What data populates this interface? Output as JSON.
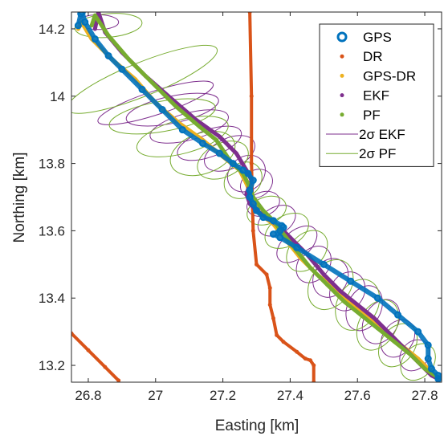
{
  "chart_data": {
    "type": "scatter",
    "xlabel": "Easting [km]",
    "ylabel": "Northing [km]",
    "xlim": [
      26.75,
      27.85
    ],
    "ylim": [
      13.15,
      14.25
    ],
    "xticks": [
      {
        "v": 26.8,
        "label": "26.8"
      },
      {
        "v": 27.0,
        "label": "27"
      },
      {
        "v": 27.2,
        "label": "27.2"
      },
      {
        "v": 27.4,
        "label": "27.4"
      },
      {
        "v": 27.6,
        "label": "27.6"
      },
      {
        "v": 27.8,
        "label": "27.8"
      }
    ],
    "yticks": [
      {
        "v": 13.2,
        "label": "13.2"
      },
      {
        "v": 13.4,
        "label": "13.4"
      },
      {
        "v": 13.6,
        "label": "13.6"
      },
      {
        "v": 13.8,
        "label": "13.8"
      },
      {
        "v": 14.0,
        "label": "14"
      },
      {
        "v": 14.2,
        "label": "14.2"
      }
    ],
    "grid": false,
    "legend_position": "top-right",
    "series": [
      {
        "name": "GPS",
        "marker": "circle-open",
        "color": "#0072BD",
        "x": [
          26.77,
          26.778,
          26.782,
          26.79,
          26.82,
          26.86,
          26.9,
          26.96,
          27.02,
          27.08,
          27.14,
          27.19,
          27.23,
          27.26,
          27.275,
          27.29,
          27.28,
          27.28,
          27.29,
          27.3,
          27.32,
          27.35,
          27.375,
          27.38,
          27.37,
          27.35,
          27.37,
          27.42,
          27.5,
          27.58,
          27.66,
          27.72,
          27.78,
          27.81,
          27.81,
          27.82,
          27.84,
          27.84
        ],
        "y": [
          14.21,
          14.245,
          14.25,
          14.22,
          14.17,
          14.12,
          14.08,
          14.02,
          13.96,
          13.9,
          13.86,
          13.83,
          13.8,
          13.78,
          13.77,
          13.75,
          13.72,
          13.7,
          13.68,
          13.66,
          13.64,
          13.63,
          13.615,
          13.61,
          13.6,
          13.59,
          13.58,
          13.55,
          13.5,
          13.45,
          13.4,
          13.35,
          13.3,
          13.26,
          13.22,
          13.19,
          13.17,
          13.16
        ]
      },
      {
        "name": "DR",
        "marker": "dot",
        "color": "#D95319",
        "x": [
          27.28,
          27.285,
          27.285,
          27.29,
          27.3,
          27.33,
          27.34,
          27.34,
          27.35,
          27.36,
          27.38,
          27.42,
          27.445,
          27.46,
          27.47,
          27.47
        ],
        "y": [
          14.25,
          14.0,
          13.8,
          13.6,
          13.5,
          13.47,
          13.43,
          13.38,
          13.34,
          13.29,
          13.27,
          13.24,
          13.22,
          13.215,
          13.2,
          13.15
        ]
      },
      {
        "name": "DR",
        "marker": "dot",
        "color": "#D95319",
        "x": [
          26.75,
          26.8,
          26.85,
          26.89
        ],
        "y": [
          13.295,
          13.245,
          13.195,
          13.155
        ]
      },
      {
        "name": "GPS-DR",
        "marker": "dot",
        "color": "#EDB120",
        "x": [
          26.77,
          26.78,
          26.81,
          26.87,
          26.94,
          27.0,
          27.07,
          27.14,
          27.2,
          27.25,
          27.27,
          27.29,
          27.31,
          27.35,
          27.39,
          27.43,
          27.48,
          27.53,
          27.57,
          27.62,
          27.68,
          27.73,
          27.78,
          27.81,
          27.83,
          27.84
        ],
        "y": [
          14.2,
          14.22,
          14.17,
          14.11,
          14.05,
          13.98,
          13.92,
          13.87,
          13.82,
          13.78,
          13.74,
          13.69,
          13.65,
          13.62,
          13.57,
          13.52,
          13.47,
          13.43,
          13.39,
          13.35,
          13.3,
          13.26,
          13.22,
          13.19,
          13.17,
          13.16
        ]
      },
      {
        "name": "EKF",
        "marker": "dot",
        "color": "#7E2F8E",
        "x": [
          26.82,
          26.83,
          26.85,
          26.9,
          26.97,
          27.05,
          27.12,
          27.19,
          27.24,
          27.27,
          27.285,
          27.27,
          27.28,
          27.3,
          27.33,
          27.37,
          27.4,
          27.45,
          27.5,
          27.55,
          27.6,
          27.65,
          27.7,
          27.74,
          27.78,
          27.8,
          27.82,
          27.84
        ],
        "y": [
          14.2,
          14.25,
          14.19,
          14.13,
          14.06,
          13.99,
          13.93,
          13.88,
          13.83,
          13.78,
          13.75,
          13.71,
          13.68,
          13.66,
          13.64,
          13.61,
          13.58,
          13.53,
          13.47,
          13.42,
          13.38,
          13.34,
          13.29,
          13.25,
          13.21,
          13.19,
          13.17,
          13.16
        ]
      },
      {
        "name": "PF",
        "marker": "dot",
        "color": "#77AC30",
        "x": [
          26.81,
          26.82,
          26.86,
          26.92,
          26.99,
          27.06,
          27.13,
          27.18,
          27.22,
          27.26,
          27.28,
          27.29,
          27.32,
          27.35,
          27.38,
          27.42,
          27.46,
          27.51,
          27.56,
          27.61,
          27.66,
          27.71,
          27.76,
          27.8,
          27.83,
          27.85
        ],
        "y": [
          14.21,
          14.24,
          14.18,
          14.11,
          14.04,
          13.97,
          13.91,
          13.87,
          13.81,
          13.77,
          13.73,
          13.7,
          13.66,
          13.63,
          13.59,
          13.54,
          13.49,
          13.44,
          13.39,
          13.35,
          13.31,
          13.27,
          13.23,
          13.19,
          13.17,
          13.16
        ]
      },
      {
        "name": "2σ EKF",
        "marker": "ellipse",
        "color": "#7E2F8E",
        "ellipses": [
          {
            "cx": 26.83,
            "cy": 14.22,
            "rx": 0.06,
            "ry": 0.022,
            "rot": 0
          },
          {
            "cx": 27.0,
            "cy": 13.98,
            "rx": 0.18,
            "ry": 0.035,
            "rot": -18
          },
          {
            "cx": 27.05,
            "cy": 13.96,
            "rx": 0.14,
            "ry": 0.04,
            "rot": -12
          },
          {
            "cx": 27.1,
            "cy": 13.91,
            "rx": 0.12,
            "ry": 0.04,
            "rot": -15
          },
          {
            "cx": 27.16,
            "cy": 13.86,
            "rx": 0.1,
            "ry": 0.04,
            "rot": -20
          },
          {
            "cx": 27.22,
            "cy": 13.83,
            "rx": 0.08,
            "ry": 0.045,
            "rot": -25
          },
          {
            "cx": 27.27,
            "cy": 13.77,
            "rx": 0.06,
            "ry": 0.05,
            "rot": -40
          },
          {
            "cx": 27.3,
            "cy": 13.74,
            "rx": 0.05,
            "ry": 0.04,
            "rot": -30
          },
          {
            "cx": 27.32,
            "cy": 13.68,
            "rx": 0.05,
            "ry": 0.035,
            "rot": -20
          },
          {
            "cx": 27.36,
            "cy": 13.63,
            "rx": 0.06,
            "ry": 0.04,
            "rot": -30
          },
          {
            "cx": 27.42,
            "cy": 13.56,
            "rx": 0.07,
            "ry": 0.04,
            "rot": -40
          },
          {
            "cx": 27.47,
            "cy": 13.5,
            "rx": 0.06,
            "ry": 0.045,
            "rot": -50
          },
          {
            "cx": 27.52,
            "cy": 13.46,
            "rx": 0.06,
            "ry": 0.05,
            "rot": -60
          },
          {
            "cx": 27.57,
            "cy": 13.42,
            "rx": 0.06,
            "ry": 0.05,
            "rot": -60
          },
          {
            "cx": 27.62,
            "cy": 13.37,
            "rx": 0.07,
            "ry": 0.05,
            "rot": -65
          },
          {
            "cx": 27.67,
            "cy": 13.33,
            "rx": 0.07,
            "ry": 0.05,
            "rot": -60
          },
          {
            "cx": 27.72,
            "cy": 13.28,
            "rx": 0.06,
            "ry": 0.045,
            "rot": -55
          },
          {
            "cx": 27.77,
            "cy": 13.23,
            "rx": 0.05,
            "ry": 0.04,
            "rot": -50
          }
        ]
      },
      {
        "name": "2σ PF",
        "marker": "ellipse",
        "color": "#77AC30",
        "ellipses": [
          {
            "cx": 26.86,
            "cy": 14.21,
            "rx": 0.1,
            "ry": 0.035,
            "rot": -5
          },
          {
            "cx": 26.96,
            "cy": 14.05,
            "rx": 0.24,
            "ry": 0.05,
            "rot": -22
          },
          {
            "cx": 27.02,
            "cy": 13.94,
            "rx": 0.16,
            "ry": 0.045,
            "rot": -10
          },
          {
            "cx": 27.08,
            "cy": 13.88,
            "rx": 0.14,
            "ry": 0.05,
            "rot": -15
          },
          {
            "cx": 27.14,
            "cy": 13.83,
            "rx": 0.1,
            "ry": 0.06,
            "rot": -20
          },
          {
            "cx": 27.2,
            "cy": 13.81,
            "rx": 0.08,
            "ry": 0.05,
            "rot": -25
          },
          {
            "cx": 27.26,
            "cy": 13.75,
            "rx": 0.06,
            "ry": 0.05,
            "rot": -40
          },
          {
            "cx": 27.33,
            "cy": 13.66,
            "rx": 0.06,
            "ry": 0.04,
            "rot": -20
          },
          {
            "cx": 27.39,
            "cy": 13.6,
            "rx": 0.07,
            "ry": 0.045,
            "rot": -30
          },
          {
            "cx": 27.45,
            "cy": 13.54,
            "rx": 0.07,
            "ry": 0.05,
            "rot": -45
          },
          {
            "cx": 27.52,
            "cy": 13.44,
            "rx": 0.08,
            "ry": 0.06,
            "rot": -55
          },
          {
            "cx": 27.6,
            "cy": 13.38,
            "rx": 0.08,
            "ry": 0.06,
            "rot": -60
          },
          {
            "cx": 27.66,
            "cy": 13.32,
            "rx": 0.08,
            "ry": 0.055,
            "rot": -60
          },
          {
            "cx": 27.72,
            "cy": 13.26,
            "rx": 0.07,
            "ry": 0.05,
            "rot": -55
          },
          {
            "cx": 27.78,
            "cy": 13.21,
            "rx": 0.06,
            "ry": 0.045,
            "rot": -50
          }
        ]
      }
    ]
  },
  "legend": {
    "items": [
      {
        "label": "GPS",
        "kind": "circle-open",
        "color": "#0072BD"
      },
      {
        "label": "DR",
        "kind": "dot",
        "color": "#D95319"
      },
      {
        "label": "GPS-DR",
        "kind": "dot",
        "color": "#EDB120"
      },
      {
        "label": "EKF",
        "kind": "dot",
        "color": "#7E2F8E"
      },
      {
        "label": "PF",
        "kind": "dot",
        "color": "#77AC30"
      },
      {
        "label": "2σ EKF",
        "kind": "line",
        "color": "#7E2F8E"
      },
      {
        "label": "2σ PF",
        "kind": "line",
        "color": "#77AC30"
      }
    ]
  }
}
